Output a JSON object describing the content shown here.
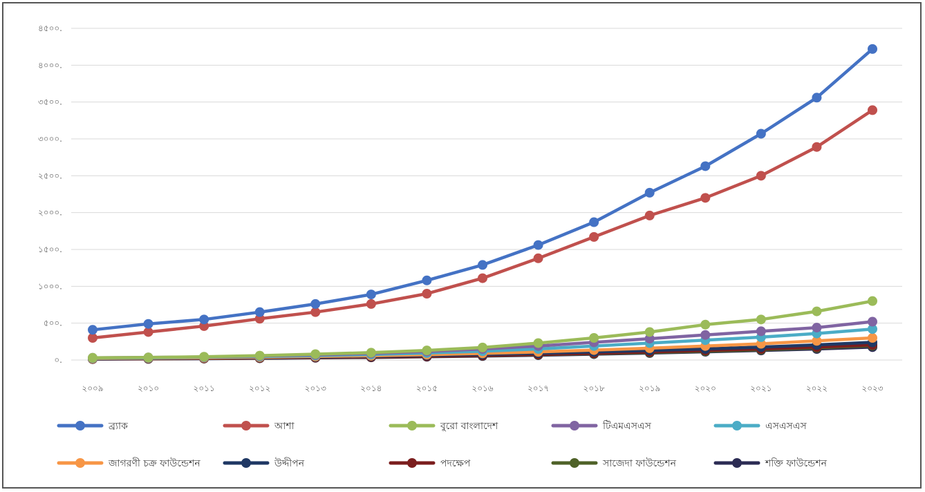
{
  "chart_data": {
    "type": "line",
    "title": "",
    "xlabel": "",
    "ylabel": "",
    "categories": [
      "২০০৯",
      "২০১০",
      "২০১১",
      "২০১২",
      "২০১৩",
      "২০১৪",
      "২০১৫",
      "২০১৬",
      "২০১৭",
      "২০১৮",
      "২০১৯",
      "২০২০",
      "২০২১",
      "২০২২",
      "২০২৩"
    ],
    "ylim": [
      0,
      4500
    ],
    "yticks": [
      0,
      500,
      1000,
      1500,
      2000,
      2500,
      3000,
      3500,
      4000,
      4500
    ],
    "ytick_labels": [
      "০.",
      "৫০০.",
      "১০০০.",
      "১৫০০.",
      "২০০০.",
      "২৫০০.",
      "৩০০০.",
      "৩৫০০.",
      "৪০০০.",
      "৪৫০০."
    ],
    "grid": true,
    "legend_position": "bottom",
    "series": [
      {
        "name": "ব্র্যাক",
        "color": "#4472C4",
        "values": [
          410,
          490,
          550,
          650,
          760,
          890,
          1080,
          1290,
          1560,
          1870,
          2270,
          2630,
          3070,
          3560,
          4220
        ]
      },
      {
        "name": "আশা",
        "color": "#C0504D",
        "values": [
          300,
          380,
          460,
          560,
          650,
          760,
          900,
          1110,
          1380,
          1670,
          1960,
          2200,
          2500,
          2890,
          3390
        ]
      },
      {
        "name": "বুরো বাংলাদেশ",
        "color": "#9BBB59",
        "values": [
          30,
          35,
          45,
          60,
          80,
          100,
          130,
          170,
          230,
          300,
          380,
          480,
          550,
          660,
          800
        ]
      },
      {
        "name": "টিএমএসএস",
        "color": "#8064A2",
        "values": [
          30,
          35,
          42,
          55,
          70,
          90,
          115,
          150,
          190,
          240,
          290,
          340,
          390,
          440,
          520
        ]
      },
      {
        "name": "এসএসএস",
        "color": "#4BACC6",
        "values": [
          25,
          30,
          38,
          48,
          60,
          75,
          95,
          120,
          150,
          190,
          230,
          270,
          310,
          360,
          420
        ]
      },
      {
        "name": "জাগরণী চক্র ফাউন্ডেশন",
        "color": "#F79646",
        "values": [
          20,
          25,
          30,
          38,
          48,
          58,
          72,
          90,
          110,
          135,
          160,
          190,
          220,
          260,
          300
        ]
      },
      {
        "name": "উদ্দীপন",
        "color": "#1F3864",
        "values": [
          18,
          22,
          27,
          33,
          40,
          50,
          62,
          76,
          92,
          110,
          130,
          150,
          175,
          205,
          240
        ]
      },
      {
        "name": "পদক্ষেপ",
        "color": "#7B1E1E",
        "values": [
          15,
          18,
          22,
          27,
          33,
          40,
          50,
          62,
          76,
          92,
          110,
          130,
          150,
          175,
          205
        ]
      },
      {
        "name": "সাজেদা ফাউন্ডেশন",
        "color": "#4F6228",
        "values": [
          15,
          18,
          22,
          27,
          33,
          40,
          50,
          60,
          72,
          86,
          102,
          120,
          140,
          165,
          195
        ]
      },
      {
        "name": "শক্তি ফাউন্ডেশন",
        "color": "#2C2C54",
        "values": [
          12,
          15,
          19,
          24,
          30,
          36,
          44,
          54,
          66,
          80,
          95,
          112,
          130,
          150,
          175
        ]
      }
    ]
  }
}
